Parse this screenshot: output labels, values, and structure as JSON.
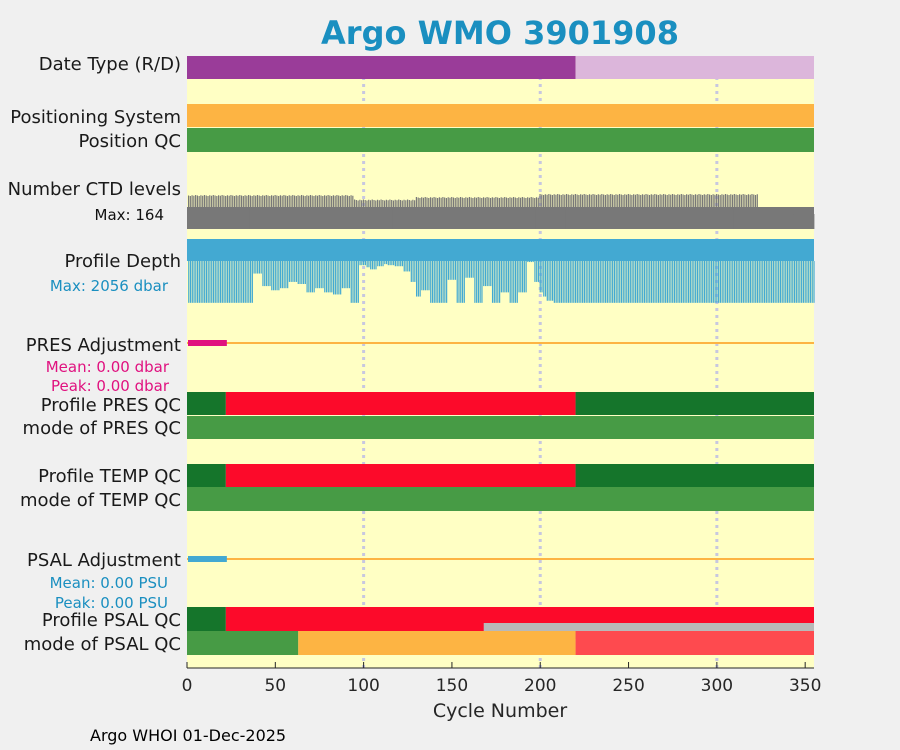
{
  "chart_data": {
    "type": "timeline",
    "title": "Argo WMO 3901908",
    "xlabel": "Cycle Number",
    "xlim": [
      0,
      355
    ],
    "xticks": [
      0,
      50,
      100,
      150,
      200,
      250,
      300,
      350
    ],
    "xtick_labels": [
      "0",
      "50",
      "100",
      "150",
      "200",
      "250",
      "300",
      "350"
    ],
    "grid_x": [
      100,
      200,
      300
    ],
    "last_cycle": 355,
    "rows": {
      "date_type": {
        "label": "Date Type (R/D)",
        "segments": [
          {
            "start": 0,
            "end": 220,
            "value": "D",
            "color": "#9a3c99"
          },
          {
            "start": 220,
            "end": 355,
            "value": "R",
            "color": "#dcb6db"
          }
        ]
      },
      "positioning_system": {
        "label": "Positioning System",
        "segments": [
          {
            "start": 0,
            "end": 355,
            "color": "#fdb443"
          }
        ]
      },
      "position_qc": {
        "label": "Position QC",
        "segments": [
          {
            "start": 0,
            "end": 355,
            "color": "#479b45"
          }
        ]
      },
      "ctd_levels": {
        "label": "Number CTD levels",
        "max_label": "Max: 164",
        "max": 164,
        "color": "#787878",
        "approx_levels": [
          {
            "start": 0,
            "end": 95,
            "value": 136
          },
          {
            "start": 95,
            "end": 130,
            "value": 118
          },
          {
            "start": 130,
            "end": 200,
            "value": 128
          },
          {
            "start": 200,
            "end": 324,
            "value": 140
          },
          {
            "start": 324,
            "end": 355,
            "value": 60
          }
        ]
      },
      "profile_depth": {
        "label": "Profile Depth",
        "max_label": "Max: 2056 dbar",
        "max": 2056,
        "color": "#43a9d2",
        "typical_depth": 2000,
        "shallow_profiles": [
          {
            "cycle": 40,
            "depth": 600
          },
          {
            "cycle": 45,
            "depth": 1200
          },
          {
            "cycle": 50,
            "depth": 1400
          },
          {
            "cycle": 55,
            "depth": 1300
          },
          {
            "cycle": 60,
            "depth": 1000
          },
          {
            "cycle": 65,
            "depth": 1100
          },
          {
            "cycle": 70,
            "depth": 1500
          },
          {
            "cycle": 75,
            "depth": 1300
          },
          {
            "cycle": 80,
            "depth": 1500
          },
          {
            "cycle": 85,
            "depth": 1600
          },
          {
            "cycle": 90,
            "depth": 1300
          },
          {
            "cycle": 100,
            "depth": 200
          },
          {
            "cycle": 102,
            "depth": 300
          },
          {
            "cycle": 105,
            "depth": 400
          },
          {
            "cycle": 110,
            "depth": 250
          },
          {
            "cycle": 112,
            "depth": 150
          },
          {
            "cycle": 115,
            "depth": 200
          },
          {
            "cycle": 120,
            "depth": 250
          },
          {
            "cycle": 125,
            "depth": 500
          },
          {
            "cycle": 128,
            "depth": 1000
          },
          {
            "cycle": 130,
            "depth": 1700
          },
          {
            "cycle": 135,
            "depth": 1400
          },
          {
            "cycle": 150,
            "depth": 900
          },
          {
            "cycle": 160,
            "depth": 800
          },
          {
            "cycle": 170,
            "depth": 1200
          },
          {
            "cycle": 180,
            "depth": 1500
          },
          {
            "cycle": 190,
            "depth": 1500
          },
          {
            "cycle": 195,
            "depth": 50
          },
          {
            "cycle": 198,
            "depth": 1000
          },
          {
            "cycle": 200,
            "depth": 1500
          },
          {
            "cycle": 202,
            "depth": 1700
          },
          {
            "cycle": 205,
            "depth": 1900
          }
        ]
      },
      "pres_adjustment": {
        "label": "PRES Adjustment",
        "mean_label": "Mean: 0.00 dbar",
        "peak_label": "Peak: 0.00 dbar",
        "color": "#e0117f",
        "adjusted_until": 22,
        "zero_line_color": "#fdb443"
      },
      "profile_pres_qc": {
        "label": "Profile PRES QC",
        "segments": [
          {
            "start": 0,
            "end": 22,
            "color": "#15752b"
          },
          {
            "start": 22,
            "end": 220,
            "color": "#fc0a2a"
          },
          {
            "start": 220,
            "end": 355,
            "color": "#15752b"
          }
        ]
      },
      "mode_pres_qc": {
        "label": "mode of PRES QC",
        "segments": [
          {
            "start": 0,
            "end": 355,
            "color": "#479b45"
          }
        ]
      },
      "profile_temp_qc": {
        "label": "Profile TEMP QC",
        "segments": [
          {
            "start": 0,
            "end": 22,
            "color": "#15752b"
          },
          {
            "start": 22,
            "end": 220,
            "color": "#fc0a2a"
          },
          {
            "start": 220,
            "end": 355,
            "color": "#15752b"
          }
        ]
      },
      "mode_temp_qc": {
        "label": "mode of TEMP QC",
        "segments": [
          {
            "start": 0,
            "end": 355,
            "color": "#479b45"
          }
        ]
      },
      "psal_adjustment": {
        "label": "PSAL Adjustment",
        "mean_label": "Mean: 0.00 PSU",
        "peak_label": "Peak: 0.00 PSU",
        "color": "#43a9d2",
        "adjusted_until": 22,
        "zero_line_color": "#fdb443"
      },
      "profile_psal_qc": {
        "label": "Profile PSAL QC",
        "segments": [
          {
            "start": 0,
            "end": 22,
            "color": "#15752b"
          },
          {
            "start": 22,
            "end": 355,
            "color": "#fc0a2a"
          }
        ],
        "overlay": {
          "start": 168,
          "end": 355,
          "color": "#b9b9b9"
        }
      },
      "mode_psal_qc": {
        "label": "mode of PSAL QC",
        "segments": [
          {
            "start": 0,
            "end": 63,
            "color": "#479b45"
          },
          {
            "start": 63,
            "end": 220,
            "color": "#fdb443"
          },
          {
            "start": 220,
            "end": 355,
            "color": "#fe4a4f"
          }
        ]
      }
    }
  },
  "footer": "Argo WHOI 01-Dec-2025",
  "colors": {
    "plot_background": "#ffffc4",
    "grid": "#c7c7e0",
    "page_background": "#f0f0f0",
    "title": "#1a8fc0"
  }
}
